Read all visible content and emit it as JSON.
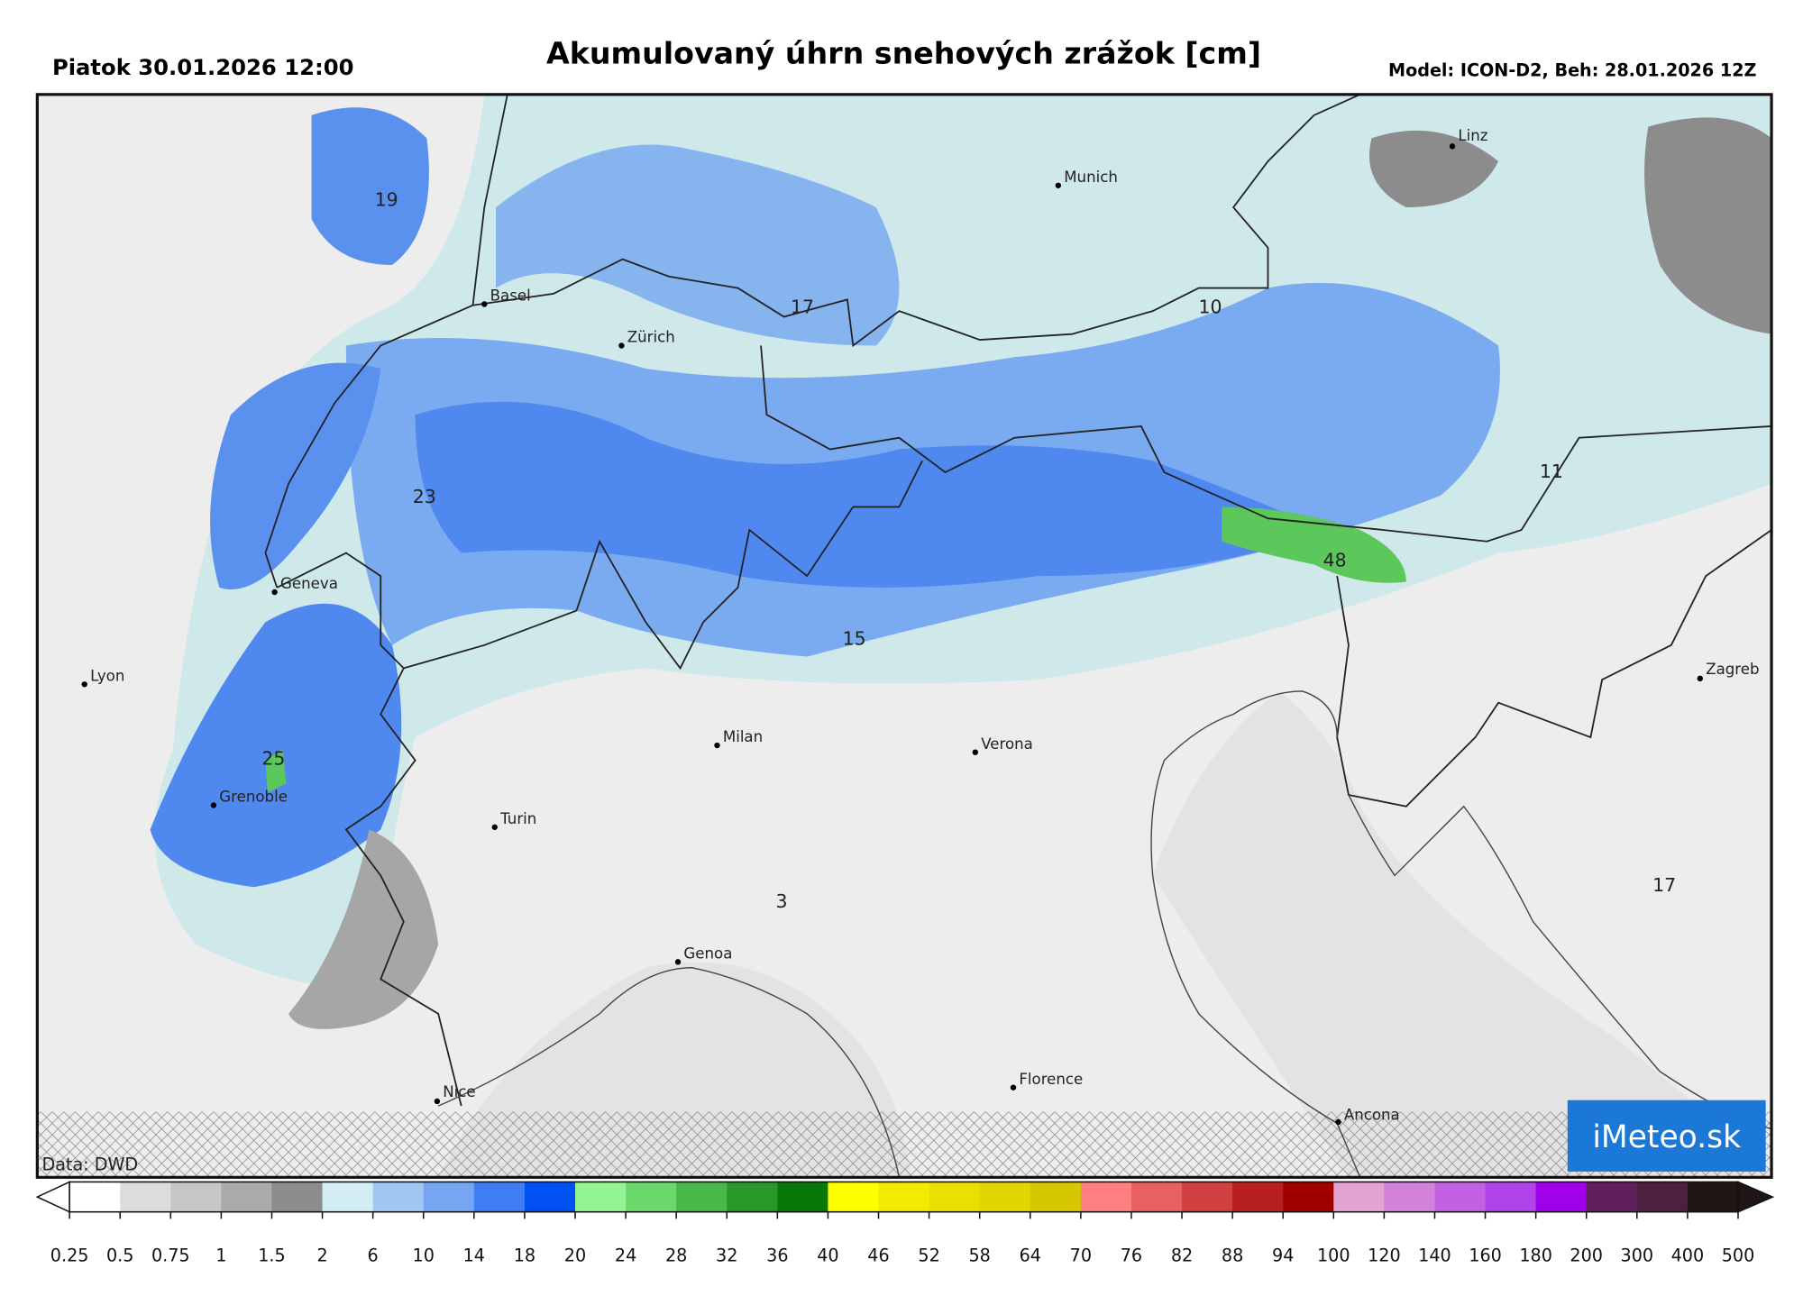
{
  "header": {
    "date": "Piatok 30.01.2026 12:00",
    "title": "Akumulovaný úhrn snehových zrážok [cm]",
    "model": "Model: ICON-D2, Beh: 28.01.2026 12Z"
  },
  "map": {
    "cities": [
      "Linz",
      "Munich",
      "Basel",
      "Zürich",
      "Geneva",
      "Lyon",
      "Grenoble",
      "Milan",
      "Verona",
      "Turin",
      "Genoa",
      "Nice",
      "Florence",
      "Ancona",
      "Zagreb"
    ],
    "values": [
      19,
      17,
      10,
      11,
      23,
      48,
      15,
      25,
      3,
      17
    ],
    "source": "Data: DWD",
    "logo": "iMeteo.sk"
  },
  "colorbar": {
    "ticks": [
      0.25,
      0.5,
      0.75,
      1,
      1.5,
      2,
      6,
      10,
      14,
      18,
      20,
      24,
      28,
      32,
      36,
      40,
      46,
      52,
      58,
      64,
      70,
      76,
      82,
      88,
      94,
      100,
      120,
      140,
      160,
      180,
      200,
      300,
      400,
      500
    ],
    "colors": [
      "#ffffff",
      "#dcdcdc",
      "#c6c6c6",
      "#aaaaaa",
      "#8c8c8c",
      "#d2eef2",
      "#a2c8f2",
      "#76a6f2",
      "#3e7ef2",
      "#0050f2",
      "#92f492",
      "#6cd86c",
      "#48b848",
      "#289828",
      "#087808",
      "#ffff00",
      "#f2ea00",
      "#e8e000",
      "#e0d600",
      "#d6c800",
      "#ff8080",
      "#e86060",
      "#d04040",
      "#b82020",
      "#a00000",
      "#e2a4d2",
      "#d282da",
      "#c262e2",
      "#b042ea",
      "#a000ea",
      "#60205e",
      "#4e2040",
      "#201414"
    ]
  }
}
